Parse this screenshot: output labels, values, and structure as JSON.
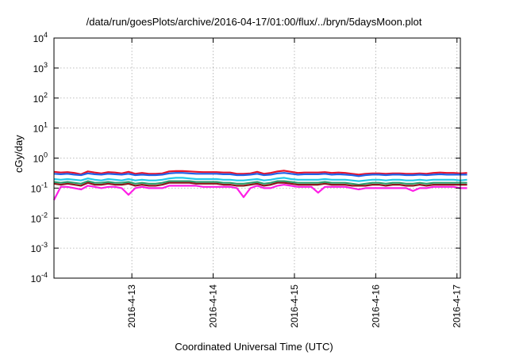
{
  "chart_data": {
    "type": "line",
    "title": "/data/run/goesPlots/archive/2016-04-17/01:00/flux/../bryn/5daysMoon.plot",
    "xlabel": "Coordinated Universal Time (UTC)",
    "ylabel": "cGy/day",
    "yscale": "log",
    "ylim": [
      0.0001,
      10000
    ],
    "xlim": [
      "2016-04-12 01:00",
      "2016-04-17 01:00"
    ],
    "grid": true,
    "y_ticks": [
      {
        "base": "10",
        "exp": "-4"
      },
      {
        "base": "10",
        "exp": "-3"
      },
      {
        "base": "10",
        "exp": "-2"
      },
      {
        "base": "10",
        "exp": "-1"
      },
      {
        "base": "10",
        "exp": "0"
      },
      {
        "base": "10",
        "exp": "1"
      },
      {
        "base": "10",
        "exp": "2"
      },
      {
        "base": "10",
        "exp": "3"
      },
      {
        "base": "10",
        "exp": "4"
      }
    ],
    "x_ticks": [
      "2016-4-13",
      "2016-4-14",
      "2016-4-15",
      "2016-4-16",
      "2016-4-17"
    ],
    "x_tick_dates": [
      "2016-04-13 00:00",
      "2016-04-14 00:00",
      "2016-04-15 00:00",
      "2016-04-16 00:00",
      "2016-04-17 00:00"
    ],
    "sample_interval_hours": 2,
    "series": [
      {
        "color": "#e8142d",
        "values": [
          0.35,
          0.33,
          0.34,
          0.32,
          0.29,
          0.36,
          0.33,
          0.31,
          0.34,
          0.33,
          0.31,
          0.35,
          0.3,
          0.32,
          0.3,
          0.3,
          0.31,
          0.36,
          0.37,
          0.37,
          0.36,
          0.35,
          0.34,
          0.34,
          0.34,
          0.33,
          0.33,
          0.3,
          0.3,
          0.31,
          0.35,
          0.3,
          0.32,
          0.36,
          0.38,
          0.35,
          0.32,
          0.33,
          0.33,
          0.33,
          0.34,
          0.32,
          0.33,
          0.32,
          0.3,
          0.28,
          0.3,
          0.31,
          0.31,
          0.3,
          0.31,
          0.31,
          0.3,
          0.3,
          0.31,
          0.3,
          0.32,
          0.33,
          0.32,
          0.32,
          0.31,
          0.32
        ]
      },
      {
        "color": "#1f62e8",
        "values": [
          0.3,
          0.29,
          0.3,
          0.28,
          0.27,
          0.31,
          0.29,
          0.28,
          0.3,
          0.29,
          0.28,
          0.3,
          0.27,
          0.28,
          0.27,
          0.27,
          0.28,
          0.31,
          0.32,
          0.32,
          0.31,
          0.3,
          0.3,
          0.3,
          0.3,
          0.29,
          0.29,
          0.27,
          0.27,
          0.28,
          0.3,
          0.27,
          0.28,
          0.31,
          0.32,
          0.3,
          0.28,
          0.29,
          0.29,
          0.29,
          0.3,
          0.28,
          0.29,
          0.28,
          0.27,
          0.25,
          0.27,
          0.28,
          0.28,
          0.27,
          0.28,
          0.28,
          0.27,
          0.27,
          0.28,
          0.27,
          0.28,
          0.29,
          0.28,
          0.28,
          0.28,
          0.28
        ]
      },
      {
        "color": "#22c8e8",
        "values": [
          0.2,
          0.19,
          0.2,
          0.19,
          0.18,
          0.21,
          0.19,
          0.18,
          0.2,
          0.19,
          0.18,
          0.2,
          0.18,
          0.19,
          0.18,
          0.18,
          0.19,
          0.21,
          0.22,
          0.22,
          0.21,
          0.2,
          0.2,
          0.2,
          0.2,
          0.19,
          0.19,
          0.18,
          0.18,
          0.19,
          0.2,
          0.18,
          0.19,
          0.21,
          0.22,
          0.2,
          0.19,
          0.19,
          0.19,
          0.19,
          0.2,
          0.19,
          0.19,
          0.19,
          0.18,
          0.17,
          0.18,
          0.19,
          0.19,
          0.18,
          0.19,
          0.19,
          0.18,
          0.18,
          0.19,
          0.18,
          0.19,
          0.19,
          0.19,
          0.19,
          0.18,
          0.19
        ]
      },
      {
        "color": "#2a9e6e",
        "values": [
          0.16,
          0.15,
          0.16,
          0.15,
          0.14,
          0.17,
          0.15,
          0.15,
          0.16,
          0.15,
          0.15,
          0.16,
          0.14,
          0.15,
          0.14,
          0.14,
          0.15,
          0.17,
          0.17,
          0.17,
          0.17,
          0.16,
          0.16,
          0.16,
          0.16,
          0.15,
          0.15,
          0.14,
          0.14,
          0.15,
          0.16,
          0.14,
          0.15,
          0.17,
          0.17,
          0.16,
          0.15,
          0.15,
          0.15,
          0.15,
          0.16,
          0.15,
          0.15,
          0.15,
          0.14,
          0.13,
          0.14,
          0.15,
          0.15,
          0.14,
          0.15,
          0.15,
          0.14,
          0.14,
          0.15,
          0.14,
          0.15,
          0.15,
          0.15,
          0.15,
          0.15,
          0.15
        ]
      },
      {
        "color": "#8b1a1a",
        "values": [
          0.14,
          0.13,
          0.14,
          0.13,
          0.12,
          0.15,
          0.13,
          0.13,
          0.14,
          0.13,
          0.13,
          0.14,
          0.12,
          0.13,
          0.12,
          0.12,
          0.13,
          0.15,
          0.15,
          0.15,
          0.15,
          0.14,
          0.14,
          0.14,
          0.14,
          0.13,
          0.13,
          0.12,
          0.12,
          0.13,
          0.14,
          0.12,
          0.13,
          0.15,
          0.15,
          0.14,
          0.13,
          0.13,
          0.13,
          0.13,
          0.14,
          0.13,
          0.13,
          0.13,
          0.12,
          0.12,
          0.12,
          0.13,
          0.13,
          0.12,
          0.13,
          0.13,
          0.12,
          0.12,
          0.13,
          0.12,
          0.13,
          0.13,
          0.13,
          0.13,
          0.13,
          0.13
        ]
      },
      {
        "color": "#ff1ee6",
        "values": [
          0.04,
          0.11,
          0.11,
          0.1,
          0.09,
          0.12,
          0.11,
          0.1,
          0.11,
          0.11,
          0.1,
          0.06,
          0.1,
          0.11,
          0.1,
          0.1,
          0.1,
          0.12,
          0.12,
          0.12,
          0.12,
          0.12,
          0.11,
          0.11,
          0.11,
          0.11,
          0.11,
          0.1,
          0.05,
          0.1,
          0.12,
          0.1,
          0.1,
          0.12,
          0.13,
          0.12,
          0.11,
          0.11,
          0.11,
          0.07,
          0.11,
          0.11,
          0.11,
          0.11,
          0.1,
          0.09,
          0.1,
          0.1,
          0.1,
          0.1,
          0.1,
          0.1,
          0.1,
          0.08,
          0.1,
          0.1,
          0.11,
          0.11,
          0.11,
          0.11,
          0.1,
          0.1
        ]
      }
    ]
  }
}
